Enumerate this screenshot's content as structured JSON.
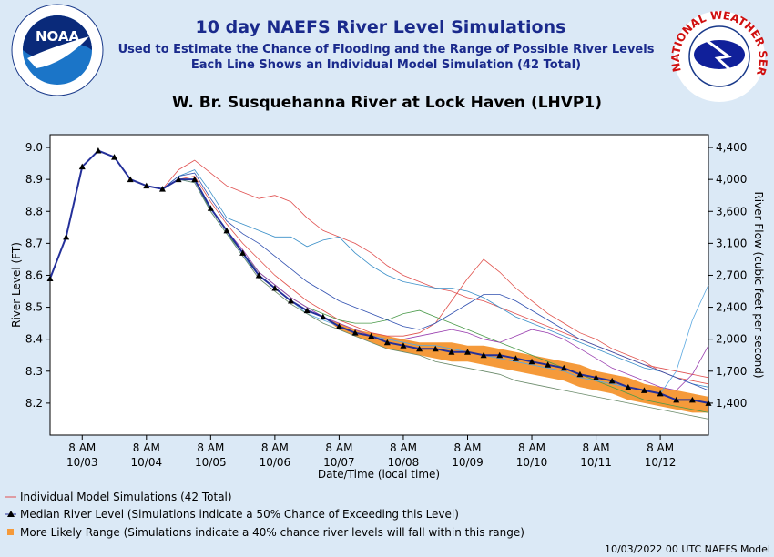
{
  "chart_data": {
    "type": "line",
    "title": "10 day NAEFS River Level Simulations",
    "subtitle": [
      "Used to Estimate the Chance of Flooding and the Range of Possible River Levels",
      "Each Line Shows an Individual Model Simulation (42 Total)"
    ],
    "location": "W. Br. Susquehanna River at Lock Haven (LHVP1)",
    "logo_left": "NOAA",
    "logo_right": "NATIONAL WEATHER SERVICE",
    "xlabel": "Date/Time (local time)",
    "ylabel": "River Level (FT)",
    "y2label": "River Flow (cubic feet per second)",
    "footer": "10/03/2022 00 UTC NAEFS Model",
    "legend": [
      "Individual Model Simulations (42 Total)",
      "Median River Level (Simulations indicate a 50% Chance of Exceeding this Level)",
      "More Likely Range (Simulations indicate a 40% chance river levels will fall within this range)"
    ],
    "xlim": [
      "2022-10-02T20:00",
      "2022-10-13T02:00"
    ],
    "xticks": [
      {
        "value": "2022-10-03T08:00",
        "label": "8 AM\n10/03"
      },
      {
        "value": "2022-10-04T08:00",
        "label": "8 AM\n10/04"
      },
      {
        "value": "2022-10-05T08:00",
        "label": "8 AM\n10/05"
      },
      {
        "value": "2022-10-06T08:00",
        "label": "8 AM\n10/06"
      },
      {
        "value": "2022-10-07T08:00",
        "label": "8 AM\n10/07"
      },
      {
        "value": "2022-10-08T08:00",
        "label": "8 AM\n10/08"
      },
      {
        "value": "2022-10-09T08:00",
        "label": "8 AM\n10/09"
      },
      {
        "value": "2022-10-10T08:00",
        "label": "8 AM\n10/10"
      },
      {
        "value": "2022-10-11T08:00",
        "label": "8 AM\n10/11"
      },
      {
        "value": "2022-10-12T08:00",
        "label": "8 AM\n10/12"
      }
    ],
    "ylim": [
      8.1,
      9.04
    ],
    "yticks": [
      {
        "value": 8.2,
        "label": "8.2"
      },
      {
        "value": 8.3,
        "label": "8.3"
      },
      {
        "value": 8.4,
        "label": "8.4"
      },
      {
        "value": 8.5,
        "label": "8.5"
      },
      {
        "value": 8.6,
        "label": "8.6"
      },
      {
        "value": 8.7,
        "label": "8.7"
      },
      {
        "value": 8.8,
        "label": "8.8"
      },
      {
        "value": 8.9,
        "label": "8.9"
      },
      {
        "value": 9.0,
        "label": "9.0"
      }
    ],
    "y2ticks": [
      {
        "value": 1400,
        "label": "1,400"
      },
      {
        "value": 1700,
        "label": "1,700"
      },
      {
        "value": 2000,
        "label": "2,000"
      },
      {
        "value": 2400,
        "label": "2,400"
      },
      {
        "value": 2700,
        "label": "2,700"
      },
      {
        "value": 3100,
        "label": "3,100"
      },
      {
        "value": 3600,
        "label": "3,600"
      },
      {
        "value": 4000,
        "label": "4,000"
      },
      {
        "value": 4400,
        "label": "4,400"
      }
    ],
    "x_start": "2022-10-02T20:00",
    "x_step_hours": 6,
    "band_color": "#f59a3a",
    "band": {
      "low": [
        8.59,
        8.72,
        8.94,
        8.99,
        8.97,
        8.9,
        8.88,
        8.87,
        8.9,
        8.9,
        8.81,
        8.74,
        8.67,
        8.6,
        8.56,
        8.52,
        8.49,
        8.47,
        8.43,
        8.41,
        8.39,
        8.37,
        8.36,
        8.35,
        8.34,
        8.33,
        8.33,
        8.32,
        8.31,
        8.3,
        8.29,
        8.28,
        8.27,
        8.25,
        8.24,
        8.23,
        8.21,
        8.2,
        8.19,
        8.18,
        8.17,
        8.17
      ],
      "high": [
        8.59,
        8.72,
        8.94,
        8.99,
        8.97,
        8.9,
        8.88,
        8.87,
        8.9,
        8.9,
        8.81,
        8.74,
        8.67,
        8.6,
        8.56,
        8.52,
        8.49,
        8.47,
        8.45,
        8.43,
        8.42,
        8.41,
        8.4,
        8.39,
        8.39,
        8.39,
        8.38,
        8.38,
        8.37,
        8.36,
        8.35,
        8.34,
        8.33,
        8.32,
        8.3,
        8.29,
        8.28,
        8.26,
        8.25,
        8.24,
        8.23,
        8.22
      ]
    },
    "median": {
      "color": "#24309a",
      "values": [
        8.59,
        8.72,
        8.94,
        8.99,
        8.97,
        8.9,
        8.88,
        8.87,
        8.9,
        8.9,
        8.81,
        8.74,
        8.67,
        8.6,
        8.56,
        8.52,
        8.49,
        8.47,
        8.44,
        8.42,
        8.41,
        8.39,
        8.38,
        8.37,
        8.37,
        8.36,
        8.36,
        8.35,
        8.35,
        8.34,
        8.33,
        8.32,
        8.31,
        8.29,
        8.28,
        8.27,
        8.25,
        8.24,
        8.23,
        8.21,
        8.21,
        8.2
      ]
    },
    "series": [
      {
        "color": "#e05050",
        "values": [
          8.59,
          8.72,
          8.94,
          8.99,
          8.97,
          8.9,
          8.88,
          8.87,
          8.93,
          8.96,
          8.92,
          8.88,
          8.86,
          8.84,
          8.85,
          8.83,
          8.78,
          8.74,
          8.72,
          8.7,
          8.67,
          8.63,
          8.6,
          8.58,
          8.56,
          8.55,
          8.53,
          8.52,
          8.5,
          8.48,
          8.46,
          8.44,
          8.42,
          8.4,
          8.38,
          8.36,
          8.34,
          8.32,
          8.31,
          8.3,
          8.29,
          8.28
        ]
      },
      {
        "color": "#3a8fc8",
        "values": [
          8.59,
          8.72,
          8.94,
          8.99,
          8.97,
          8.9,
          8.88,
          8.87,
          8.91,
          8.93,
          8.86,
          8.78,
          8.76,
          8.74,
          8.72,
          8.72,
          8.69,
          8.71,
          8.72,
          8.67,
          8.63,
          8.6,
          8.58,
          8.57,
          8.56,
          8.56,
          8.55,
          8.53,
          8.5,
          8.47,
          8.45,
          8.43,
          8.41,
          8.39,
          8.37,
          8.35,
          8.33,
          8.31,
          8.3,
          8.28,
          8.26,
          8.25
        ]
      },
      {
        "color": "#e0504a",
        "values": [
          8.59,
          8.72,
          8.94,
          8.99,
          8.97,
          8.9,
          8.88,
          8.87,
          8.9,
          8.91,
          8.83,
          8.76,
          8.7,
          8.65,
          8.6,
          8.56,
          8.52,
          8.49,
          8.46,
          8.44,
          8.42,
          8.41,
          8.41,
          8.42,
          8.45,
          8.52,
          8.59,
          8.65,
          8.61,
          8.56,
          8.52,
          8.48,
          8.45,
          8.42,
          8.4,
          8.37,
          8.35,
          8.33,
          8.3,
          8.28,
          8.27,
          8.26
        ]
      },
      {
        "color": "#4a9a4a",
        "values": [
          8.59,
          8.72,
          8.94,
          8.99,
          8.97,
          8.9,
          8.88,
          8.87,
          8.9,
          8.9,
          8.8,
          8.73,
          8.67,
          8.61,
          8.57,
          8.53,
          8.5,
          8.48,
          8.46,
          8.45,
          8.45,
          8.46,
          8.48,
          8.49,
          8.47,
          8.45,
          8.43,
          8.41,
          8.39,
          8.37,
          8.35,
          8.33,
          8.31,
          8.29,
          8.27,
          8.25,
          8.23,
          8.21,
          8.2,
          8.19,
          8.18,
          8.17
        ]
      },
      {
        "color": "#9a40b0",
        "values": [
          8.59,
          8.72,
          8.94,
          8.99,
          8.97,
          8.9,
          8.88,
          8.87,
          8.9,
          8.9,
          8.81,
          8.74,
          8.68,
          8.61,
          8.57,
          8.53,
          8.5,
          8.47,
          8.45,
          8.43,
          8.41,
          8.4,
          8.4,
          8.41,
          8.42,
          8.43,
          8.42,
          8.4,
          8.39,
          8.41,
          8.43,
          8.42,
          8.4,
          8.37,
          8.34,
          8.31,
          8.29,
          8.27,
          8.25,
          8.24,
          8.29,
          8.38
        ]
      },
      {
        "color": "#5aa8e0",
        "values": [
          8.59,
          8.72,
          8.94,
          8.99,
          8.97,
          8.9,
          8.88,
          8.87,
          8.9,
          8.89,
          8.8,
          8.73,
          8.66,
          8.6,
          8.56,
          8.52,
          8.48,
          8.46,
          8.44,
          8.42,
          8.41,
          8.4,
          8.39,
          8.38,
          8.38,
          8.37,
          8.36,
          8.35,
          8.34,
          8.33,
          8.32,
          8.31,
          8.3,
          8.28,
          8.27,
          8.26,
          8.25,
          8.24,
          8.23,
          8.3,
          8.46,
          8.57
        ]
      },
      {
        "color": "#6a8a6a",
        "values": [
          8.59,
          8.72,
          8.94,
          8.99,
          8.97,
          8.9,
          8.88,
          8.87,
          8.9,
          8.89,
          8.8,
          8.73,
          8.66,
          8.59,
          8.55,
          8.51,
          8.48,
          8.45,
          8.43,
          8.41,
          8.39,
          8.37,
          8.36,
          8.35,
          8.33,
          8.32,
          8.31,
          8.3,
          8.29,
          8.27,
          8.26,
          8.25,
          8.24,
          8.23,
          8.22,
          8.21,
          8.2,
          8.19,
          8.18,
          8.17,
          8.16,
          8.15
        ]
      },
      {
        "color": "#3050b0",
        "values": [
          8.59,
          8.72,
          8.94,
          8.99,
          8.97,
          8.9,
          8.88,
          8.87,
          8.91,
          8.92,
          8.84,
          8.77,
          8.73,
          8.7,
          8.66,
          8.62,
          8.58,
          8.55,
          8.52,
          8.5,
          8.48,
          8.46,
          8.44,
          8.43,
          8.45,
          8.48,
          8.51,
          8.54,
          8.54,
          8.52,
          8.49,
          8.46,
          8.43,
          8.4,
          8.38,
          8.36,
          8.34,
          8.32,
          8.3,
          8.28,
          8.26,
          8.24
        ]
      }
    ]
  }
}
